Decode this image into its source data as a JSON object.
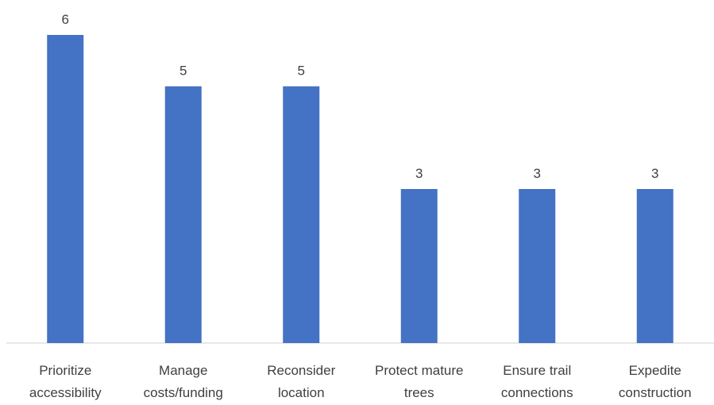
{
  "chart_data": {
    "type": "bar",
    "categories": [
      [
        "Prioritize",
        "accessibility"
      ],
      [
        "Manage",
        "costs/funding"
      ],
      [
        "Reconsider",
        "location"
      ],
      [
        "Protect mature",
        "trees"
      ],
      [
        "Ensure trail",
        "connections"
      ],
      [
        "Expedite",
        "construction"
      ]
    ],
    "values": [
      6,
      5,
      5,
      3,
      3,
      3
    ],
    "data_labels": [
      "6",
      "5",
      "5",
      "3",
      "3",
      "3"
    ],
    "title": "",
    "xlabel": "",
    "ylabel": "",
    "ylim": [
      0,
      6
    ],
    "grid": false,
    "legend": "none",
    "colors": {
      "bar": "#4472C4",
      "axis": "#D9D9D9",
      "text": "#404040"
    }
  }
}
